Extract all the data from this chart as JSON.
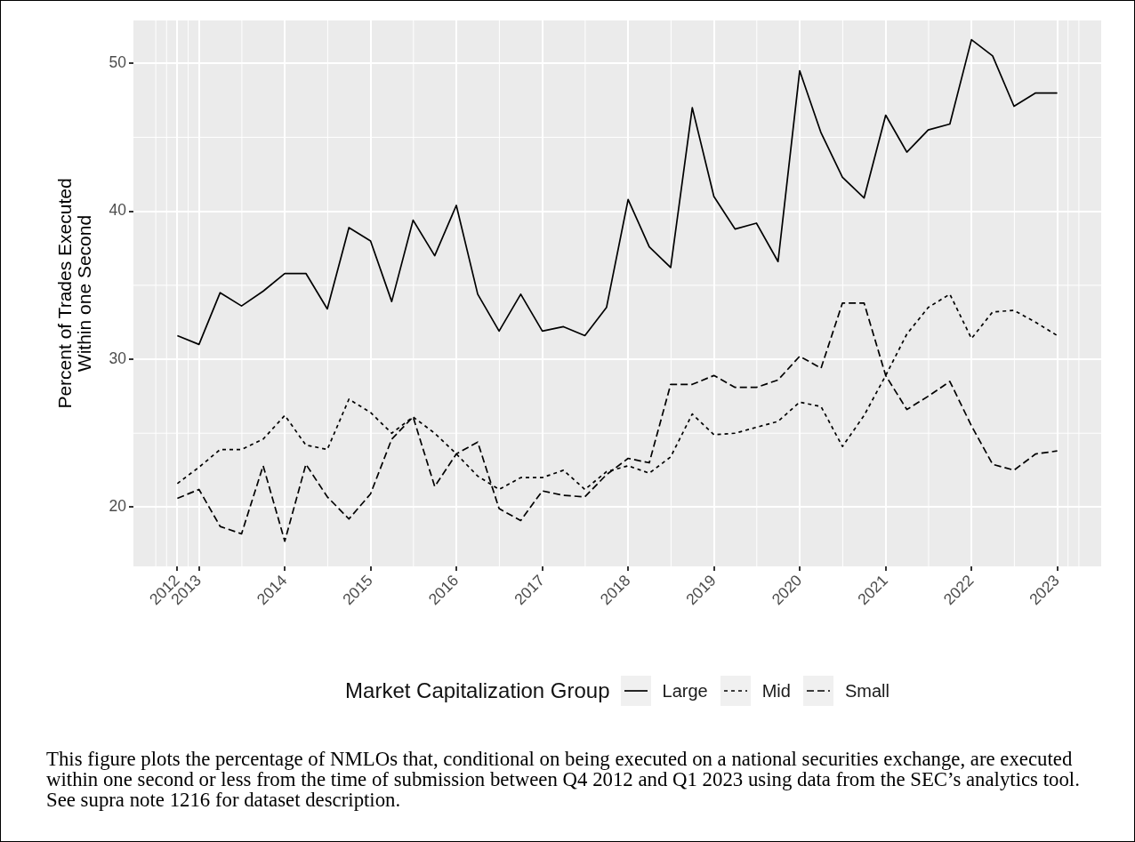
{
  "chart_data": {
    "type": "line",
    "ylabel": "Percent of Trades Executed\nWithin one Second",
    "legend_title": "Market Capitalization Group",
    "annotations": [
      "This figure plots the percentage of NMLOs that, conditional on being executed on a national securities exchange, are executed within one second or less from the time of submission between Q4 2012 and Q1 2023 using data from the SEC’s analytics tool. See supra note 1216 for dataset description."
    ],
    "x": [
      "2012-10",
      "2013-01",
      "2013-04",
      "2013-07",
      "2013-10",
      "2014-01",
      "2014-04",
      "2014-07",
      "2014-10",
      "2015-01",
      "2015-04",
      "2015-07",
      "2015-10",
      "2016-01",
      "2016-04",
      "2016-07",
      "2016-10",
      "2017-01",
      "2017-04",
      "2017-07",
      "2017-10",
      "2018-01",
      "2018-04",
      "2018-07",
      "2018-10",
      "2019-01",
      "2019-04",
      "2019-07",
      "2019-10",
      "2020-01",
      "2020-04",
      "2020-07",
      "2020-10",
      "2021-01",
      "2021-04",
      "2021-07",
      "2021-10",
      "2022-01",
      "2022-04",
      "2022-07",
      "2022-10",
      "2023-01"
    ],
    "series": [
      {
        "name": "Large",
        "color": "#000000",
        "line_style": "solid",
        "values": [
          31.6,
          31.0,
          34.5,
          33.6,
          34.6,
          35.8,
          35.8,
          33.4,
          38.9,
          38.0,
          33.9,
          39.4,
          37.0,
          40.4,
          34.4,
          31.9,
          34.4,
          31.9,
          32.2,
          31.6,
          33.5,
          40.8,
          37.6,
          36.2,
          47.0,
          41.0,
          38.8,
          39.2,
          36.6,
          49.5,
          45.3,
          42.3,
          40.9,
          46.5,
          44.0,
          45.5,
          45.9,
          51.6,
          50.5,
          47.1,
          48.0,
          48.0
        ]
      },
      {
        "name": "Mid",
        "color": "#000000",
        "line_style": "dotted",
        "values": [
          21.6,
          22.7,
          23.9,
          23.9,
          24.6,
          26.2,
          24.2,
          23.9,
          27.3,
          26.4,
          25.0,
          26.1,
          25.0,
          23.6,
          22.1,
          21.2,
          22.0,
          22.0,
          22.5,
          21.2,
          22.4,
          22.8,
          22.3,
          23.4,
          26.3,
          24.9,
          25.0,
          25.4,
          25.8,
          27.1,
          26.8,
          24.1,
          26.2,
          28.9,
          31.7,
          33.5,
          34.4,
          31.4,
          33.2,
          33.3,
          32.5,
          31.6
        ]
      },
      {
        "name": "Small",
        "color": "#000000",
        "line_style": "dashed",
        "values": [
          20.6,
          21.2,
          18.7,
          18.2,
          22.8,
          17.7,
          22.9,
          20.7,
          19.2,
          20.9,
          24.6,
          26.1,
          21.4,
          23.6,
          24.4,
          19.9,
          19.1,
          21.1,
          20.8,
          20.7,
          22.2,
          23.3,
          23.0,
          28.3,
          28.3,
          28.9,
          28.1,
          28.1,
          28.6,
          30.2,
          29.4,
          33.8,
          33.8,
          28.9,
          26.6,
          27.5,
          28.5,
          25.5,
          22.9,
          22.5,
          23.6,
          23.8
        ]
      }
    ],
    "xlim": [
      "2012-03-28",
      "2023-07-07"
    ],
    "xticks": [
      {
        "value": "2012-10",
        "label": "2012"
      },
      {
        "value": "2013-01",
        "label": "2013"
      },
      {
        "value": "2014-01",
        "label": "2014"
      },
      {
        "value": "2015-01",
        "label": "2015"
      },
      {
        "value": "2016-01",
        "label": "2016"
      },
      {
        "value": "2017-01",
        "label": "2017"
      },
      {
        "value": "2018-01",
        "label": "2018"
      },
      {
        "value": "2019-01",
        "label": "2019"
      },
      {
        "value": "2020-01",
        "label": "2020"
      },
      {
        "value": "2021-01",
        "label": "2021"
      },
      {
        "value": "2022-01",
        "label": "2022"
      },
      {
        "value": "2023-01",
        "label": "2023"
      }
    ],
    "ylim": [
      16.0,
      52.9
    ],
    "yticks": [
      20,
      30,
      40,
      50
    ],
    "grid": true,
    "legend": "bottom",
    "marker": "none"
  }
}
